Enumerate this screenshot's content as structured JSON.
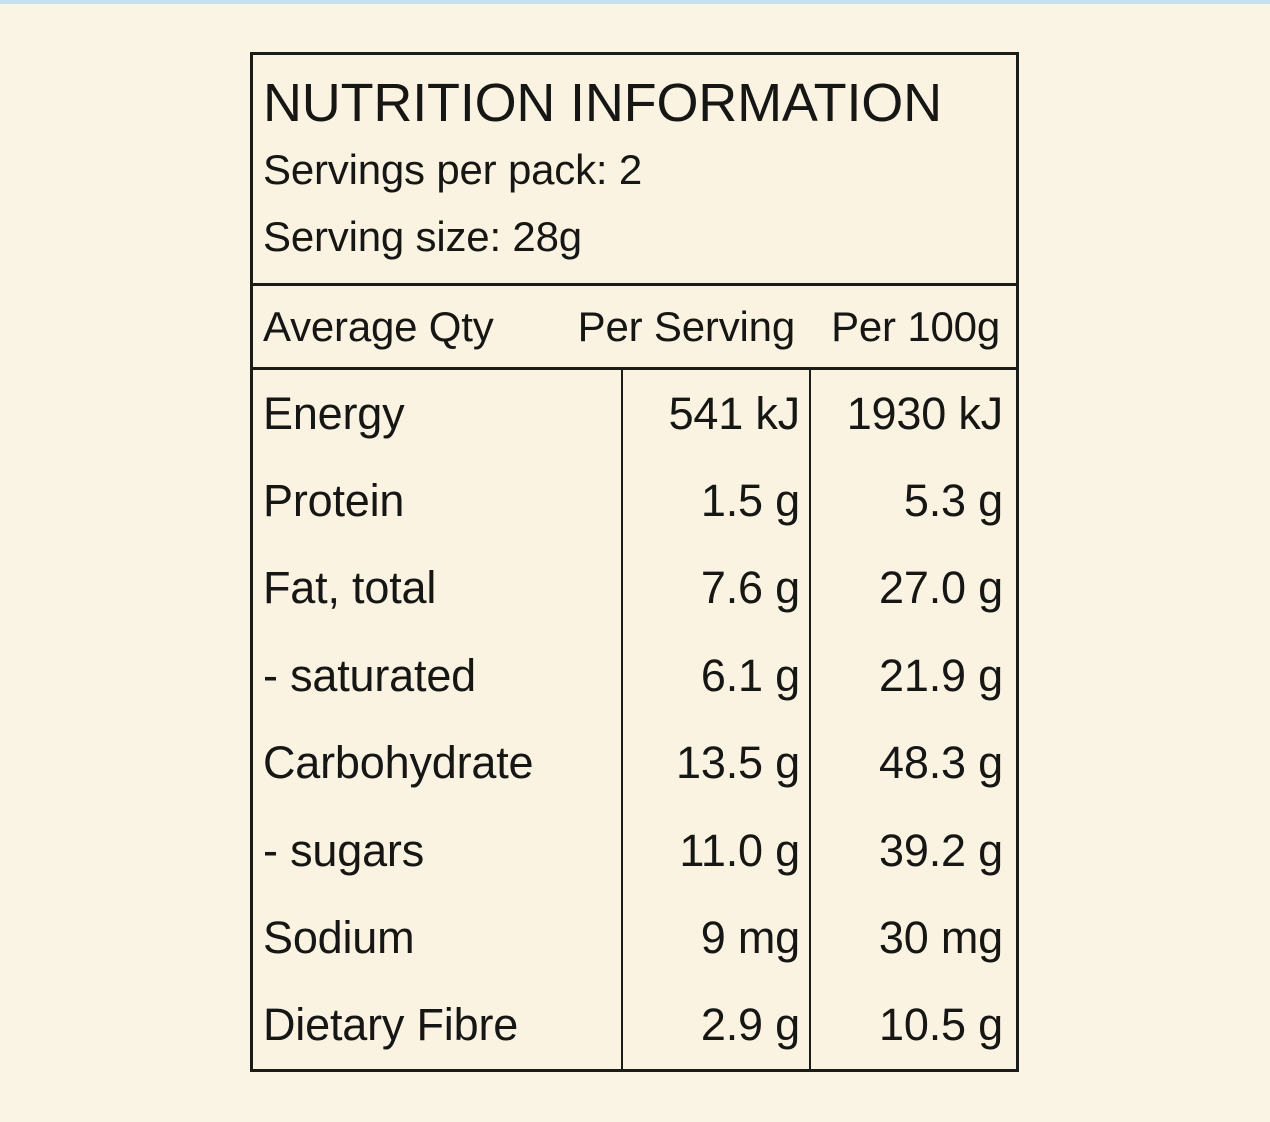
{
  "page": {
    "background_color": "#faf4e4",
    "top_strip_color": "#c4e0f1"
  },
  "label": {
    "title": "NUTRITION INFORMATION",
    "servings_per_pack": "Servings per pack: 2",
    "serving_size": "Serving size: 28g",
    "columns": {
      "qty": "Average Qty",
      "per_serving": "Per Serving",
      "per_100g": "Per 100g"
    },
    "rows": [
      {
        "name": "Energy",
        "per_serving": "541 kJ",
        "per_100g": "1930 kJ"
      },
      {
        "name": "Protein",
        "per_serving": "1.5 g",
        "per_100g": "5.3 g"
      },
      {
        "name": "Fat, total",
        "per_serving": "7.6 g",
        "per_100g": "27.0 g"
      },
      {
        "name": "- saturated",
        "per_serving": "6.1 g",
        "per_100g": "21.9 g"
      },
      {
        "name": "Carbohydrate",
        "per_serving": "13.5 g",
        "per_100g": "48.3 g"
      },
      {
        "name": "- sugars",
        "per_serving": "11.0 g",
        "per_100g": "39.2 g"
      },
      {
        "name": "Sodium",
        "per_serving": "9 mg",
        "per_100g": "30 mg"
      },
      {
        "name": "Dietary Fibre",
        "per_serving": "2.9 g",
        "per_100g": "10.5 g"
      }
    ],
    "colors": {
      "panel_background": "#faf3e2",
      "border": "#1b1b18",
      "text": "#161614"
    }
  }
}
